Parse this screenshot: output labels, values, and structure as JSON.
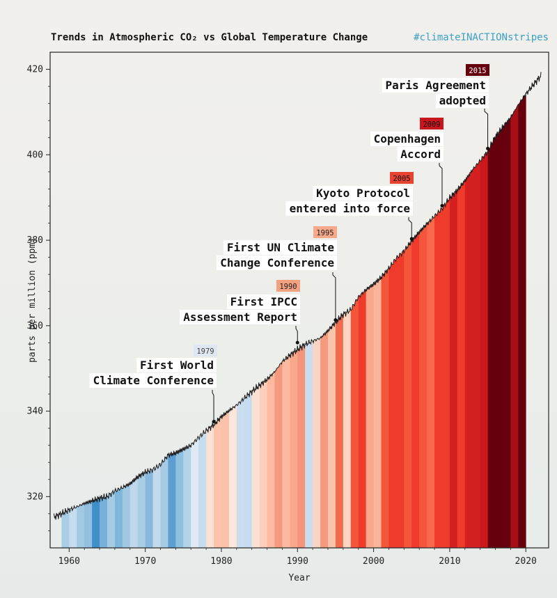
{
  "title": "Trends in Atmospheric CO₂ vs Global Temperature Change",
  "hashtag": "#climateINACTIONstripes",
  "chart_data": {
    "type": "area",
    "xlabel": "Year",
    "ylabel": "parts per million (ppm)",
    "xlim": [
      1957.5,
      2023
    ],
    "ylim": [
      308,
      424
    ],
    "x_ticks": [
      1960,
      1970,
      1980,
      1990,
      2000,
      2010,
      2020
    ],
    "y_ticks": [
      320,
      340,
      360,
      380,
      400,
      420
    ],
    "grid": false,
    "co2_series": {
      "name": "CO₂",
      "years": [
        1958,
        1959,
        1960,
        1961,
        1962,
        1963,
        1964,
        1965,
        1966,
        1967,
        1968,
        1969,
        1970,
        1971,
        1972,
        1973,
        1974,
        1975,
        1976,
        1977,
        1978,
        1979,
        1980,
        1981,
        1982,
        1983,
        1984,
        1985,
        1986,
        1987,
        1988,
        1989,
        1990,
        1991,
        1992,
        1993,
        1994,
        1995,
        1996,
        1997,
        1998,
        1999,
        2000,
        2001,
        2002,
        2003,
        2004,
        2005,
        2006,
        2007,
        2008,
        2009,
        2010,
        2011,
        2012,
        2013,
        2014,
        2015,
        2016,
        2017,
        2018,
        2019,
        2020,
        2021,
        2022
      ],
      "ppm": [
        315.2,
        316.0,
        316.9,
        317.6,
        318.4,
        319.0,
        319.6,
        320.0,
        321.3,
        322.1,
        323.0,
        324.6,
        325.7,
        326.3,
        327.5,
        329.7,
        330.2,
        331.1,
        332.0,
        333.8,
        335.4,
        336.8,
        338.7,
        340.1,
        341.4,
        343.0,
        344.6,
        346.0,
        347.4,
        349.2,
        351.6,
        353.1,
        354.4,
        355.6,
        356.4,
        357.1,
        358.8,
        360.8,
        362.6,
        363.7,
        366.7,
        368.4,
        369.7,
        371.3,
        373.4,
        375.8,
        377.5,
        379.8,
        381.9,
        383.8,
        385.6,
        387.4,
        389.9,
        391.7,
        393.9,
        396.5,
        398.6,
        400.8,
        404.2,
        406.5,
        408.7,
        411.7,
        414.2,
        416.4,
        418.5
      ]
    },
    "stripe_colors": {
      "years": [
        1959,
        1960,
        1961,
        1962,
        1963,
        1964,
        1965,
        1966,
        1967,
        1968,
        1969,
        1970,
        1971,
        1972,
        1973,
        1974,
        1975,
        1976,
        1977,
        1978,
        1979,
        1980,
        1981,
        1982,
        1983,
        1984,
        1985,
        1986,
        1987,
        1988,
        1989,
        1990,
        1991,
        1992,
        1993,
        1994,
        1995,
        1996,
        1997,
        1998,
        1999,
        2000,
        2001,
        2002,
        2003,
        2004,
        2005,
        2006,
        2007,
        2008,
        2009,
        2010,
        2011,
        2012,
        2013,
        2014,
        2015,
        2016,
        2017,
        2018,
        2019
      ],
      "colors": [
        "#a9cde3",
        "#c6dcef",
        "#a2c9e2",
        "#94c0df",
        "#3f8fc9",
        "#77b0da",
        "#a6cbe3",
        "#7fb7dc",
        "#a0c8e1",
        "#c0d7ec",
        "#a9cde3",
        "#8ab8dc",
        "#c3daed",
        "#a6cbe3",
        "#5c9ed2",
        "#8fc0de",
        "#b3d3e9",
        "#dfeaf5",
        "#c6dcef",
        "#fbe1d4",
        "#fcc4ab",
        "#fac2aa",
        "#fde6da",
        "#cbdeef",
        "#c6dcef",
        "#fbe1d4",
        "#fbcfbb",
        "#fcbba1",
        "#f49a7f",
        "#fcbba1",
        "#f8a98b",
        "#f5947c",
        "#cbdeef",
        "#f9d4c4",
        "#f49a7f",
        "#fcc4ab",
        "#f06c4f",
        "#fdd5c2",
        "#f4563c",
        "#ef3b2c",
        "#f8a98b",
        "#f9b599",
        "#f4563c",
        "#ef3b2c",
        "#ef3b2c",
        "#f4563c",
        "#ef3b2c",
        "#f4563c",
        "#f8684b",
        "#ef3b2c",
        "#ef3b2c",
        "#d42020",
        "#ef3b2c",
        "#d42020",
        "#d42020",
        "#cb181d",
        "#67000d",
        "#67000d",
        "#67000d",
        "#a50f15",
        "#67000d"
      ]
    },
    "annotations": [
      {
        "year": "1979",
        "x": 1979,
        "y": 338.5,
        "line1": "First World",
        "line2": "Climate Conference",
        "badge_color": "#dfe7f3",
        "text_color": "#444"
      },
      {
        "year": "1990",
        "x": 1990,
        "y": 357.2,
        "line1": "First IPCC",
        "line2": "Assessment Report",
        "badge_color": "#f4a182",
        "text_color": "#222"
      },
      {
        "year": "1995",
        "x": 1995,
        "y": 363.3,
        "line1": "First UN Climate",
        "line2": "Change Conference",
        "badge_color": "#f6a98b",
        "text_color": "#222"
      },
      {
        "year": "2005",
        "x": 2005,
        "y": 382.2,
        "line1": "Kyoto Protocol",
        "line2": "entered into force",
        "badge_color": "#e8432f",
        "text_color": "#111"
      },
      {
        "year": "2009",
        "x": 2009,
        "y": 389.4,
        "line1": "Copenhagen",
        "line2": "Accord",
        "badge_color": "#c9151c",
        "text_color": "#111"
      },
      {
        "year": "2015",
        "x": 2015,
        "y": 402.8,
        "line1": "Paris Agreement",
        "line2": "adopted",
        "badge_color": "#67000d",
        "text_color": "#fff"
      }
    ]
  }
}
